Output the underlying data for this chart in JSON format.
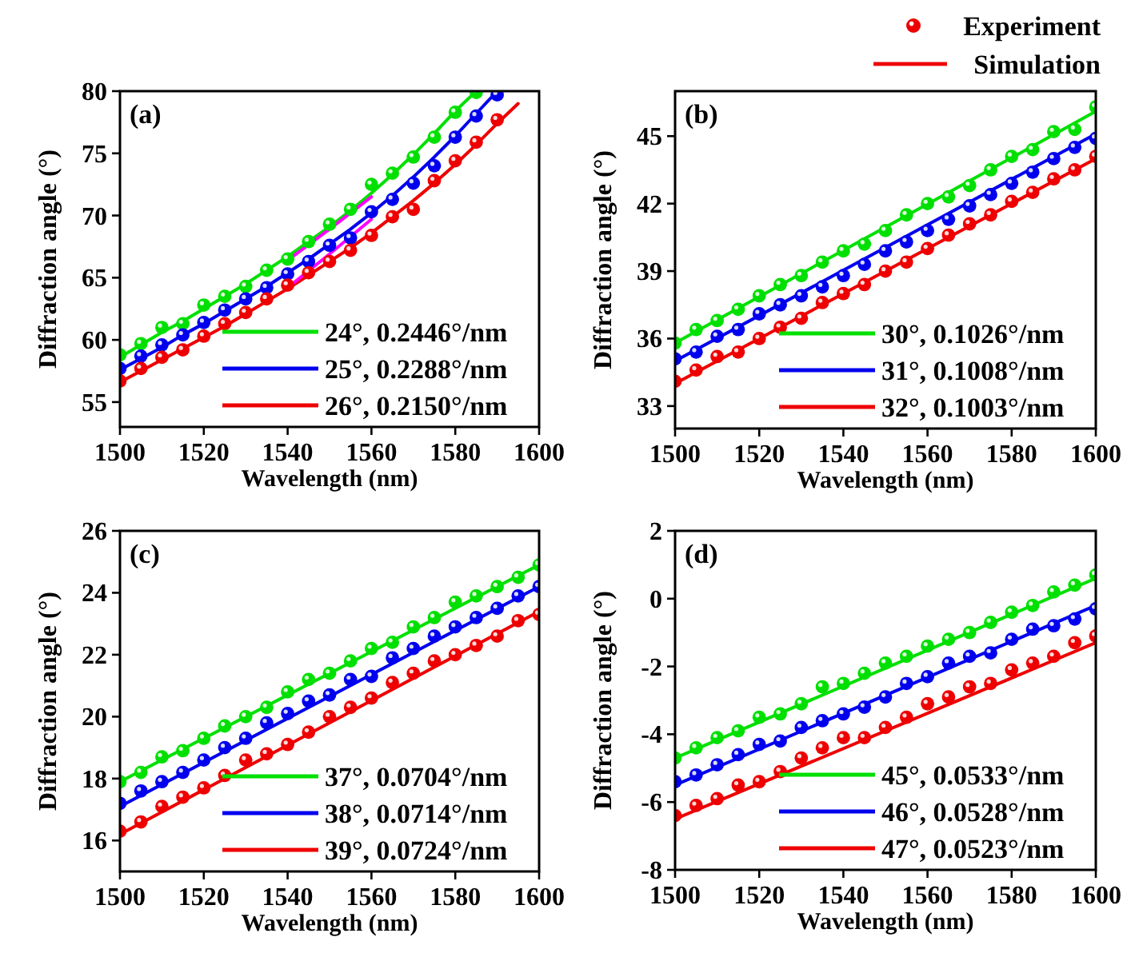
{
  "chart_data": [
    {
      "type": "line",
      "title": "(a)",
      "xlabel": "Wavelength (nm)",
      "ylabel": "Diffraction angle (°)",
      "xlim": [
        1500,
        1600
      ],
      "xticks": [
        1500,
        1520,
        1540,
        1560,
        1580,
        1600
      ],
      "ylim": [
        53,
        80
      ],
      "yticks": [
        55,
        60,
        65,
        70,
        75,
        80
      ],
      "legend": "bottom right",
      "x": [
        1500,
        1505,
        1510,
        1515,
        1520,
        1525,
        1530,
        1535,
        1540,
        1545,
        1550,
        1555,
        1560,
        1565,
        1570,
        1575,
        1580,
        1585,
        1590
      ],
      "series": [
        {
          "name": "24°, 0.2446°/nm",
          "color": "#00e000",
          "x": [
            1500,
            1505,
            1510,
            1515,
            1520,
            1525,
            1530,
            1535,
            1540,
            1545,
            1550,
            1555,
            1560,
            1565,
            1570,
            1575,
            1580,
            1585
          ],
          "values": [
            58.6,
            59.6,
            60.6,
            61.5,
            62.5,
            63.5,
            64.5,
            65.6,
            66.7,
            67.9,
            69.1,
            70.4,
            71.8,
            73.3,
            74.9,
            76.6,
            78.4,
            80
          ]
        },
        {
          "name": "25°, 0.2288°/nm",
          "color": "#0000ee",
          "x": [
            1500,
            1505,
            1510,
            1515,
            1520,
            1525,
            1530,
            1535,
            1540,
            1545,
            1550,
            1555,
            1560,
            1565,
            1570,
            1575,
            1580,
            1585,
            1590
          ],
          "values": [
            57.6,
            58.5,
            59.4,
            60.4,
            61.3,
            62.3,
            63.3,
            64.3,
            65.4,
            66.5,
            67.7,
            68.9,
            70.2,
            71.6,
            73.1,
            74.7,
            76.4,
            78.2,
            80
          ]
        },
        {
          "name": "26°, 0.2150°/nm",
          "color": "#ee0000",
          "x": [
            1500,
            1505,
            1510,
            1515,
            1520,
            1525,
            1530,
            1535,
            1540,
            1545,
            1550,
            1555,
            1560,
            1565,
            1570,
            1575,
            1580,
            1585,
            1590,
            1595
          ],
          "values": [
            56.6,
            57.5,
            58.4,
            59.3,
            60.2,
            61.1,
            62.1,
            63.1,
            64.1,
            65.2,
            66.3,
            67.4,
            68.6,
            69.9,
            71.2,
            72.6,
            74.1,
            75.7,
            77.4,
            79.0
          ]
        },
        {
          "color": "#ff00ff",
          "x": [
            1540,
            1550,
            1560
          ],
          "values": [
            66.4,
            68.9,
            71.5
          ]
        },
        {
          "color": "#ff00ff",
          "x": [
            1540,
            1550,
            1560
          ],
          "values": [
            64.2,
            66.9,
            69.7
          ]
        },
        {
          "type": "scatter",
          "marker": "circle",
          "color": "#00e000",
          "x": [
            1500,
            1505,
            1510,
            1515,
            1520,
            1525,
            1530,
            1535,
            1540,
            1545,
            1550,
            1555,
            1560,
            1565,
            1570,
            1575,
            1580,
            1585
          ],
          "values": [
            58.8,
            59.7,
            61.0,
            61.3,
            62.8,
            63.5,
            64.3,
            65.6,
            66.5,
            67.9,
            69.3,
            70.5,
            72.5,
            73.4,
            74.7,
            76.3,
            78.3,
            79.9
          ]
        },
        {
          "type": "scatter",
          "marker": "circle",
          "color": "#0000ee",
          "values": [
            57.7,
            58.7,
            59.6,
            60.4,
            61.4,
            62.4,
            63.3,
            64.2,
            65.3,
            66.3,
            67.6,
            68.2,
            70.3,
            71.3,
            72.6,
            74.0,
            76.3,
            78.0,
            79.7
          ]
        },
        {
          "type": "scatter",
          "marker": "circle",
          "color": "#ee0000",
          "values": [
            56.7,
            57.7,
            58.6,
            59.2,
            60.3,
            61.3,
            62.2,
            63.3,
            64.4,
            65.4,
            66.3,
            67.2,
            68.4,
            69.9,
            70.5,
            72.8,
            74.4,
            75.9,
            77.7
          ]
        }
      ]
    },
    {
      "type": "line",
      "title": "(b)",
      "xlabel": "Wavelength (nm)",
      "ylabel": "Diffraction angle (°)",
      "xlim": [
        1500,
        1600
      ],
      "xticks": [
        1500,
        1520,
        1540,
        1560,
        1580,
        1600
      ],
      "ylim": [
        32,
        47
      ],
      "yticks": [
        33,
        36,
        39,
        42,
        45
      ],
      "legend": "bottom right",
      "annotations": [
        "Experiment",
        "Simulation"
      ],
      "x": [
        1500,
        1505,
        1510,
        1515,
        1520,
        1525,
        1530,
        1535,
        1540,
        1545,
        1550,
        1555,
        1560,
        1565,
        1570,
        1575,
        1580,
        1585,
        1590,
        1595,
        1600
      ],
      "series": [
        {
          "name": "30°, 0.1026°/nm",
          "color": "#00e000",
          "x": [
            1500,
            1600
          ],
          "values": [
            35.8,
            46.1
          ]
        },
        {
          "name": "31°, 0.1008°/nm",
          "color": "#0000ee",
          "x": [
            1500,
            1600
          ],
          "values": [
            35.0,
            45.1
          ]
        },
        {
          "name": "32°, 0.1003°/nm",
          "color": "#ee0000",
          "x": [
            1500,
            1600
          ],
          "values": [
            34.0,
            44.0
          ]
        },
        {
          "type": "scatter",
          "marker": "circle",
          "color": "#00e000",
          "values": [
            35.8,
            36.4,
            36.8,
            37.3,
            37.9,
            38.4,
            38.8,
            39.4,
            39.9,
            40.2,
            40.8,
            41.5,
            42.0,
            42.3,
            42.8,
            43.5,
            44.1,
            44.4,
            45.2,
            45.3,
            46.3
          ]
        },
        {
          "type": "scatter",
          "marker": "circle",
          "color": "#0000ee",
          "values": [
            35.1,
            35.4,
            36.1,
            36.4,
            37.1,
            37.5,
            37.9,
            38.3,
            38.8,
            39.3,
            39.9,
            40.3,
            40.8,
            41.3,
            41.9,
            42.4,
            42.9,
            43.4,
            44.0,
            44.5,
            44.9
          ]
        },
        {
          "type": "scatter",
          "marker": "circle",
          "color": "#ee0000",
          "values": [
            34.1,
            34.6,
            35.2,
            35.4,
            36.0,
            36.5,
            36.9,
            37.6,
            38.0,
            38.4,
            39.0,
            39.4,
            40.0,
            40.6,
            41.1,
            41.5,
            42.1,
            42.5,
            43.1,
            43.5,
            44.1
          ]
        }
      ]
    },
    {
      "type": "line",
      "title": "(c)",
      "xlabel": "Wavelength (nm)",
      "ylabel": "Diffraction angle (°)",
      "xlim": [
        1500,
        1600
      ],
      "xticks": [
        1500,
        1520,
        1540,
        1560,
        1580,
        1600
      ],
      "ylim": [
        15,
        26
      ],
      "yticks": [
        16,
        18,
        20,
        22,
        24,
        26
      ],
      "legend": "bottom right",
      "x": [
        1500,
        1505,
        1510,
        1515,
        1520,
        1525,
        1530,
        1535,
        1540,
        1545,
        1550,
        1555,
        1560,
        1565,
        1570,
        1575,
        1580,
        1585,
        1590,
        1595,
        1600
      ],
      "series": [
        {
          "name": "37°, 0.0704°/nm",
          "color": "#00e000",
          "x": [
            1500,
            1600
          ],
          "values": [
            17.9,
            24.9
          ]
        },
        {
          "name": "38°, 0.0714°/nm",
          "color": "#0000ee",
          "x": [
            1500,
            1600
          ],
          "values": [
            17.1,
            24.2
          ]
        },
        {
          "name": "39°, 0.0724°/nm",
          "color": "#ee0000",
          "x": [
            1500,
            1600
          ],
          "values": [
            16.2,
            23.4
          ]
        },
        {
          "type": "scatter",
          "marker": "circle",
          "color": "#00e000",
          "values": [
            17.9,
            18.2,
            18.7,
            18.9,
            19.3,
            19.7,
            20.0,
            20.3,
            20.8,
            21.2,
            21.4,
            21.8,
            22.2,
            22.4,
            22.9,
            23.2,
            23.7,
            23.9,
            24.2,
            24.5,
            24.9
          ]
        },
        {
          "type": "scatter",
          "marker": "circle",
          "color": "#0000ee",
          "values": [
            17.2,
            17.6,
            17.9,
            18.2,
            18.6,
            19.0,
            19.3,
            19.8,
            20.1,
            20.5,
            20.7,
            21.2,
            21.3,
            21.9,
            22.2,
            22.6,
            22.9,
            23.2,
            23.5,
            23.9,
            24.2
          ]
        },
        {
          "type": "scatter",
          "marker": "circle",
          "color": "#ee0000",
          "values": [
            16.3,
            16.6,
            17.1,
            17.4,
            17.7,
            18.1,
            18.6,
            18.8,
            19.1,
            19.5,
            20.0,
            20.3,
            20.6,
            21.1,
            21.4,
            21.8,
            22.0,
            22.3,
            22.6,
            23.1,
            23.3
          ]
        }
      ]
    },
    {
      "type": "line",
      "title": "(d)",
      "xlabel": "Wavelength (nm)",
      "ylabel": "Diffraction angle (°)",
      "xlim": [
        1500,
        1600
      ],
      "xticks": [
        1500,
        1520,
        1540,
        1560,
        1580,
        1600
      ],
      "ylim": [
        -8,
        2
      ],
      "yticks": [
        -8,
        -6,
        -4,
        -2,
        0,
        2
      ],
      "legend": "bottom right",
      "x": [
        1500,
        1505,
        1510,
        1515,
        1520,
        1525,
        1530,
        1535,
        1540,
        1545,
        1550,
        1555,
        1560,
        1565,
        1570,
        1575,
        1580,
        1585,
        1590,
        1595,
        1600
      ],
      "series": [
        {
          "name": "45°, 0.0533°/nm",
          "color": "#00e000",
          "x": [
            1500,
            1600
          ],
          "values": [
            -4.7,
            0.6
          ]
        },
        {
          "name": "46°, 0.0528°/nm",
          "color": "#0000ee",
          "x": [
            1500,
            1600
          ],
          "values": [
            -5.5,
            -0.2
          ]
        },
        {
          "name": "47°, 0.0523°/nm",
          "color": "#ee0000",
          "x": [
            1500,
            1600
          ],
          "values": [
            -6.5,
            -1.3
          ]
        },
        {
          "type": "scatter",
          "marker": "circle",
          "color": "#00e000",
          "values": [
            -4.7,
            -4.4,
            -4.1,
            -3.9,
            -3.5,
            -3.4,
            -3.1,
            -2.6,
            -2.5,
            -2.2,
            -1.9,
            -1.7,
            -1.4,
            -1.2,
            -1.0,
            -0.7,
            -0.4,
            -0.2,
            0.2,
            0.4,
            0.7
          ]
        },
        {
          "type": "scatter",
          "marker": "circle",
          "color": "#0000ee",
          "values": [
            -5.4,
            -5.2,
            -4.9,
            -4.6,
            -4.3,
            -4.2,
            -3.8,
            -3.6,
            -3.4,
            -3.2,
            -2.9,
            -2.5,
            -2.3,
            -1.9,
            -1.7,
            -1.6,
            -1.2,
            -0.9,
            -0.8,
            -0.6,
            -0.3
          ]
        },
        {
          "type": "scatter",
          "marker": "circle",
          "color": "#ee0000",
          "values": [
            -6.4,
            -6.1,
            -5.9,
            -5.5,
            -5.4,
            -5.1,
            -4.7,
            -4.4,
            -4.1,
            -4.1,
            -3.8,
            -3.5,
            -3.1,
            -2.9,
            -2.6,
            -2.5,
            -2.1,
            -1.9,
            -1.7,
            -1.3,
            -1.1
          ]
        }
      ]
    }
  ]
}
